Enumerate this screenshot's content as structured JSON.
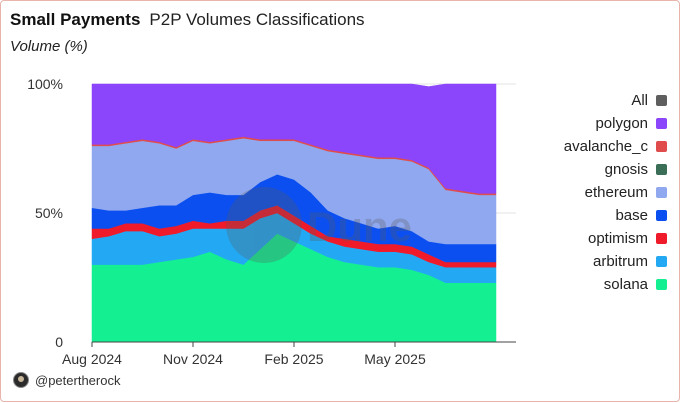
{
  "header": {
    "title": "Small Payments",
    "subtitle": "P2P Volumes Classifications",
    "y_unit_label": "Volume (%)"
  },
  "footer": {
    "handle": "@petertherock",
    "avatar_icon": "user-avatar-icon"
  },
  "watermark": "Dune",
  "chart_data": {
    "type": "area",
    "stacked": true,
    "normalized": true,
    "title": "P2P Volumes Classifications",
    "ylabel": "Volume (%)",
    "ylim": [
      0,
      100
    ],
    "y_ticks": [
      "0",
      "50%",
      "100%"
    ],
    "x_ticks": [
      "Aug 2024",
      "Nov 2024",
      "Feb 2025",
      "May 2025"
    ],
    "x": [
      "2024-08-01",
      "2024-08-15",
      "2024-09-01",
      "2024-09-15",
      "2024-10-01",
      "2024-10-15",
      "2024-11-01",
      "2024-11-15",
      "2024-12-01",
      "2024-12-15",
      "2025-01-01",
      "2025-01-15",
      "2025-02-01",
      "2025-02-15",
      "2025-03-01",
      "2025-03-15",
      "2025-04-01",
      "2025-04-15",
      "2025-05-01",
      "2025-05-15",
      "2025-06-01",
      "2025-06-15",
      "2025-07-01",
      "2025-07-15",
      "2025-08-01"
    ],
    "grid": true,
    "legend_position": "right",
    "legend": [
      {
        "name": "All",
        "color": "#5e5e5e"
      },
      {
        "name": "polygon",
        "color": "#8b45fb"
      },
      {
        "name": "avalanche_c",
        "color": "#e04b4b"
      },
      {
        "name": "gnosis",
        "color": "#3b6e57"
      },
      {
        "name": "ethereum",
        "color": "#8fa8ef"
      },
      {
        "name": "base",
        "color": "#0b4ff0"
      },
      {
        "name": "optimism",
        "color": "#ef1b2a"
      },
      {
        "name": "arbitrum",
        "color": "#23a9f4"
      },
      {
        "name": "solana",
        "color": "#13ef91"
      }
    ],
    "series": [
      {
        "name": "solana",
        "color": "#13ef91",
        "values": [
          30,
          30,
          30,
          30,
          31,
          32,
          33,
          35,
          32,
          30,
          36,
          42,
          39,
          36,
          33,
          31,
          30,
          29,
          29,
          28,
          26,
          23,
          23,
          23,
          23
        ]
      },
      {
        "name": "arbitrum",
        "color": "#23a9f4",
        "values": [
          10,
          11,
          13,
          13,
          10,
          10,
          11,
          9,
          12,
          14,
          12,
          8,
          7,
          6,
          6,
          6,
          6,
          6,
          6,
          6,
          5,
          6,
          6,
          6,
          6
        ]
      },
      {
        "name": "optimism",
        "color": "#ef1b2a",
        "values": [
          4,
          3,
          3,
          3,
          3,
          3,
          3,
          2,
          3,
          3,
          3,
          3,
          3,
          3,
          2,
          3,
          3,
          3,
          3,
          3,
          3,
          2,
          2,
          2,
          2
        ]
      },
      {
        "name": "base",
        "color": "#0b4ff0",
        "values": [
          8,
          7,
          5,
          6,
          9,
          8,
          10,
          12,
          10,
          10,
          11,
          12,
          14,
          13,
          10,
          8,
          7,
          6,
          7,
          6,
          5,
          7,
          7,
          7,
          7
        ]
      },
      {
        "name": "ethereum",
        "color": "#8fa8ef",
        "values": [
          24,
          25,
          26,
          26,
          24,
          22,
          21,
          19,
          21,
          22,
          16,
          13,
          15,
          18,
          23,
          25,
          26,
          27,
          26,
          27,
          28,
          21,
          20,
          19,
          19
        ]
      },
      {
        "name": "avalanche_c",
        "color": "#e04b4b",
        "values": [
          0.6,
          0.6,
          0.6,
          0.6,
          0.6,
          0.6,
          0.6,
          0.6,
          0.6,
          0.6,
          0.6,
          0.6,
          0.6,
          0.6,
          0.6,
          0.6,
          0.6,
          0.6,
          0.6,
          0.6,
          0.6,
          0.6,
          0.6,
          0.6,
          0.6
        ]
      },
      {
        "name": "polygon",
        "color": "#8b45fb",
        "values": [
          23.4,
          23.4,
          22.4,
          21.4,
          22.4,
          24.4,
          21.4,
          22.4,
          21.4,
          20.4,
          21.4,
          21.4,
          21.4,
          23.4,
          25.4,
          26.4,
          27.4,
          28.4,
          28.4,
          29.4,
          31.4,
          40.4,
          41.4,
          42.4,
          42.4
        ]
      }
    ]
  }
}
